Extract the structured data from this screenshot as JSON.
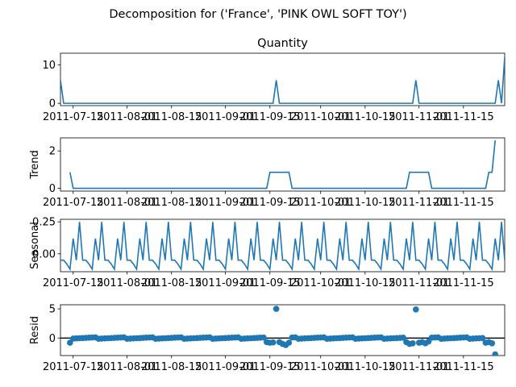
{
  "figure_title": "Decomposition for ('France', 'PINK OWL SOFT TOY')",
  "colors": {
    "line": "#1f77b4",
    "axis": "#000000",
    "background": "#ffffff"
  },
  "chart_data": [
    {
      "type": "line",
      "title": "Quantity",
      "xlabel": "",
      "ylabel": "",
      "x_ticks": [
        "2011-07-15",
        "2011-08-01",
        "2011-08-15",
        "2011-09-01",
        "2011-09-15",
        "2011-10-01",
        "2011-10-15",
        "2011-11-01",
        "2011-11-15"
      ],
      "x_range": [
        "2011-07-11",
        "2011-11-28"
      ],
      "ylim": [
        -0.6,
        13
      ],
      "y_ticks": [
        "0",
        "10"
      ],
      "grid": false,
      "series": [
        {
          "points": [
            [
              "2011-07-11",
              6
            ],
            [
              "2011-07-12",
              0
            ],
            [
              "2011-09-16",
              0
            ],
            [
              "2011-09-17",
              6
            ],
            [
              "2011-09-18",
              0
            ],
            [
              "2011-10-30",
              0
            ],
            [
              "2011-10-31",
              6
            ],
            [
              "2011-11-01",
              0
            ],
            [
              "2011-11-25",
              0
            ],
            [
              "2011-11-26",
              6
            ],
            [
              "2011-11-27",
              0
            ],
            [
              "2011-11-28",
              12
            ]
          ]
        }
      ]
    },
    {
      "type": "line",
      "title": "",
      "xlabel": "",
      "ylabel": "Trend",
      "x_ticks": [
        "2011-07-15",
        "2011-08-01",
        "2011-08-15",
        "2011-09-01",
        "2011-09-15",
        "2011-10-01",
        "2011-10-15",
        "2011-11-01",
        "2011-11-15"
      ],
      "x_range": [
        "2011-07-11",
        "2011-11-28"
      ],
      "ylim": [
        -0.15,
        2.7
      ],
      "y_ticks": [
        "0",
        "2"
      ],
      "grid": false,
      "series": [
        {
          "points": [
            [
              "2011-07-14",
              0.857
            ],
            [
              "2011-07-15",
              0
            ],
            [
              "2011-09-14",
              0
            ],
            [
              "2011-09-15",
              0.857
            ],
            [
              "2011-09-21",
              0.857
            ],
            [
              "2011-09-22",
              0
            ],
            [
              "2011-10-28",
              0
            ],
            [
              "2011-10-29",
              0.857
            ],
            [
              "2011-11-04",
              0.857
            ],
            [
              "2011-11-05",
              0
            ],
            [
              "2011-11-22",
              0
            ],
            [
              "2011-11-23",
              0.857
            ],
            [
              "2011-11-24",
              0.857
            ],
            [
              "2011-11-25",
              2.57
            ]
          ]
        }
      ]
    },
    {
      "type": "line",
      "title": "",
      "xlabel": "",
      "ylabel": "Seasonal",
      "x_ticks": [
        "2011-07-15",
        "2011-08-01",
        "2011-08-15",
        "2011-09-01",
        "2011-09-15",
        "2011-10-01",
        "2011-10-15",
        "2011-11-01",
        "2011-11-15"
      ],
      "x_range": [
        "2011-07-11",
        "2011-11-28"
      ],
      "ylim": [
        -0.14,
        0.27
      ],
      "y_ticks": [
        "0.25",
        "0.00"
      ],
      "grid": false,
      "period_days": 7,
      "series": [
        {
          "cycle": [
            -0.05,
            -0.05,
            -0.08,
            -0.12,
            0.12,
            -0.05,
            0.25
          ]
        }
      ]
    },
    {
      "type": "scatter",
      "title": "",
      "xlabel": "",
      "ylabel": "Resid",
      "x_ticks": [
        "2011-07-15",
        "2011-08-01",
        "2011-08-15",
        "2011-09-01",
        "2011-09-15",
        "2011-10-01",
        "2011-10-15",
        "2011-11-01",
        "2011-11-15"
      ],
      "x_range": [
        "2011-07-11",
        "2011-11-28"
      ],
      "ylim": [
        -3,
        5.7
      ],
      "y_ticks": [
        "5",
        "0"
      ],
      "grid": false,
      "zero_line": true,
      "baseline_noise": 0.12,
      "series": [
        {
          "outliers": [
            [
              "2011-07-14",
              -0.8
            ],
            [
              "2011-09-14",
              -0.7
            ],
            [
              "2011-09-15",
              -0.8
            ],
            [
              "2011-09-16",
              -0.75
            ],
            [
              "2011-09-17",
              5.0
            ],
            [
              "2011-09-18",
              -0.7
            ],
            [
              "2011-09-19",
              -1.0
            ],
            [
              "2011-09-20",
              -1.2
            ],
            [
              "2011-09-21",
              -0.8
            ],
            [
              "2011-10-28",
              -0.7
            ],
            [
              "2011-10-29",
              -1.0
            ],
            [
              "2011-10-30",
              -0.9
            ],
            [
              "2011-10-31",
              4.9
            ],
            [
              "2011-11-01",
              -0.8
            ],
            [
              "2011-11-02",
              -0.7
            ],
            [
              "2011-11-03",
              -0.9
            ],
            [
              "2011-11-04",
              -0.6
            ],
            [
              "2011-11-22",
              -0.8
            ],
            [
              "2011-11-23",
              -0.7
            ],
            [
              "2011-11-24",
              -0.9
            ],
            [
              "2011-11-25",
              -2.8
            ]
          ]
        }
      ]
    }
  ]
}
